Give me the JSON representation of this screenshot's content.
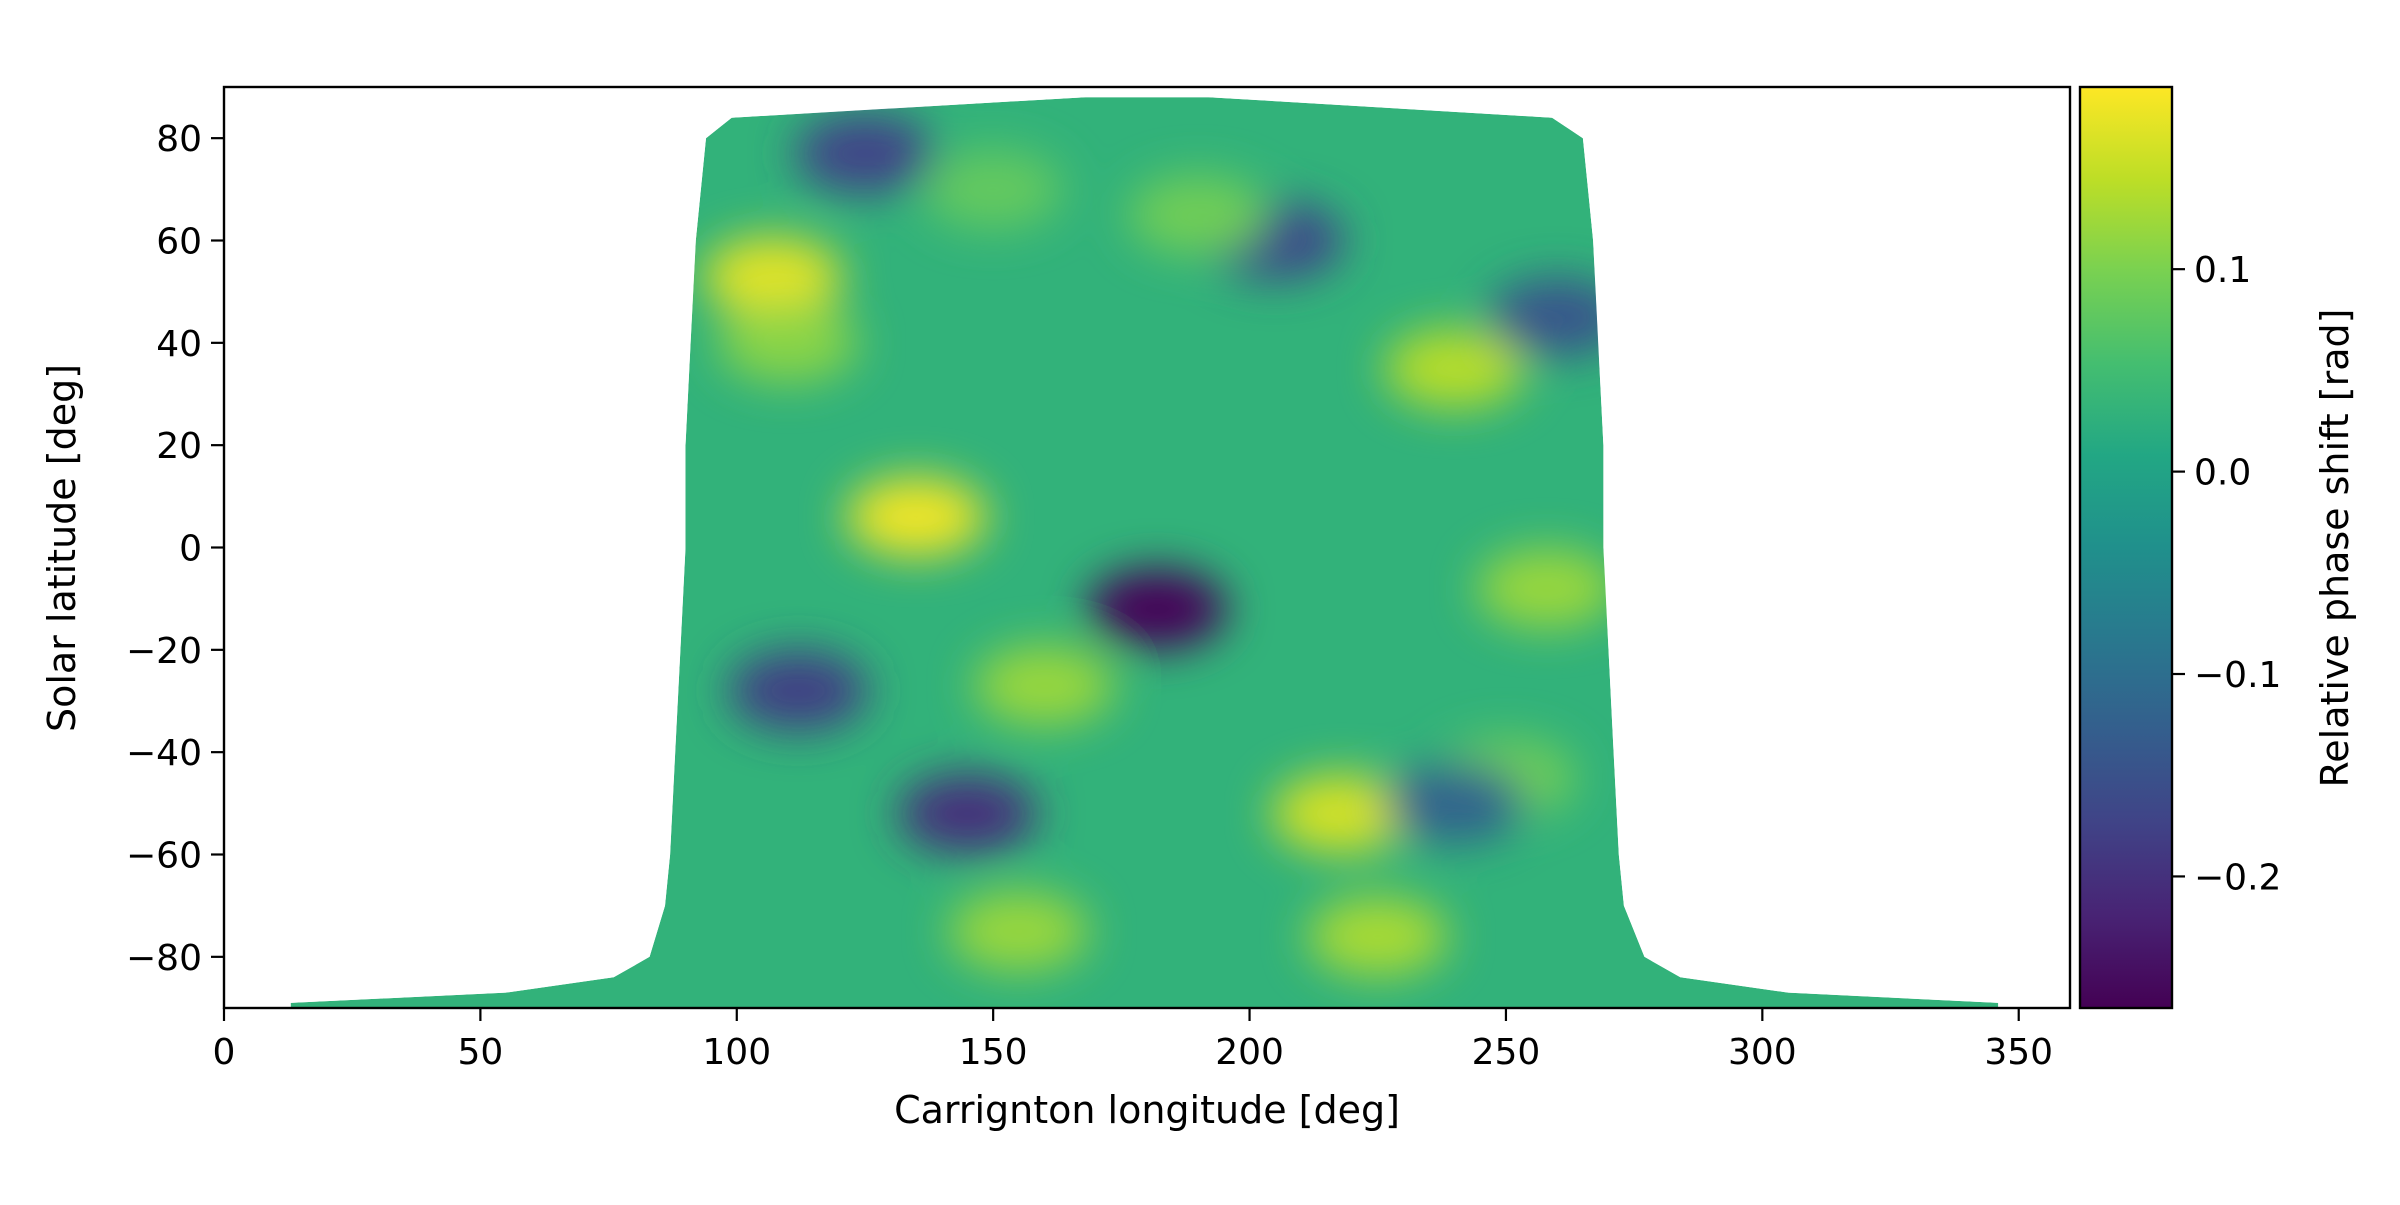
{
  "chart_data": {
    "type": "heatmap",
    "title": "",
    "xlabel": "Carrignton longitude [deg]",
    "ylabel": "Solar latitude [deg]",
    "xlim": [
      0,
      360
    ],
    "ylim": [
      -90,
      90
    ],
    "xticks": [
      0,
      50,
      100,
      150,
      200,
      250,
      300,
      350
    ],
    "yticks": [
      -80,
      -60,
      -40,
      -20,
      0,
      20,
      40,
      60,
      80
    ],
    "grid": false,
    "colormap": "viridis",
    "colorbar": {
      "label": "Relative phase shift [rad]",
      "range": [
        -0.265,
        0.19
      ],
      "ticks": [
        -0.2,
        -0.1,
        0.0,
        0.1
      ],
      "tick_labels": [
        "−0.2",
        "−0.1",
        "0.0",
        "0.1"
      ]
    },
    "data_region": {
      "description_values": "Map covers roughly Carrington longitude 90-270 deg at mid latitudes, narrowing toward the poles; outside this disk-shaped region no data (white). Near latitude -90 a thin strip spans 0-360.",
      "boundary_lat": [
        88,
        84,
        80,
        70,
        60,
        40,
        20,
        0,
        -20,
        -40,
        -60,
        -70,
        -80,
        -84,
        -87,
        -89
      ],
      "boundary_lon_left": [
        168,
        99,
        94,
        93,
        92,
        91,
        90,
        90,
        89,
        88,
        87,
        86,
        83,
        76,
        55,
        13
      ],
      "boundary_lon_right": [
        192,
        259,
        265,
        266,
        267,
        268,
        269,
        269,
        270,
        271,
        272,
        273,
        277,
        284,
        305,
        346
      ]
    },
    "features": [
      {
        "lon": 182,
        "lat": -12,
        "value": -0.26
      },
      {
        "lon": 135,
        "lat": 6,
        "value": 0.18
      },
      {
        "lon": 107,
        "lat": 53,
        "value": 0.17
      },
      {
        "lon": 218,
        "lat": -52,
        "value": 0.16
      },
      {
        "lon": 240,
        "lat": 35,
        "value": 0.14
      },
      {
        "lon": 145,
        "lat": -52,
        "value": -0.2
      },
      {
        "lon": 112,
        "lat": -28,
        "value": -0.18
      },
      {
        "lon": 125,
        "lat": 77,
        "value": -0.17
      },
      {
        "lon": 205,
        "lat": 60,
        "value": -0.16
      },
      {
        "lon": 225,
        "lat": -76,
        "value": 0.13
      },
      {
        "lon": 155,
        "lat": -75,
        "value": 0.12
      },
      {
        "lon": 160,
        "lat": -27,
        "value": 0.12
      },
      {
        "lon": 258,
        "lat": -8,
        "value": 0.12
      },
      {
        "lon": 110,
        "lat": 40,
        "value": 0.11
      },
      {
        "lon": 150,
        "lat": 70,
        "value": 0.08
      },
      {
        "lon": 190,
        "lat": 65,
        "value": 0.09
      },
      {
        "lon": 250,
        "lat": -45,
        "value": 0.09
      },
      {
        "lon": 260,
        "lat": 45,
        "value": -0.14
      },
      {
        "lon": 240,
        "lat": -50,
        "value": -0.12
      }
    ]
  }
}
